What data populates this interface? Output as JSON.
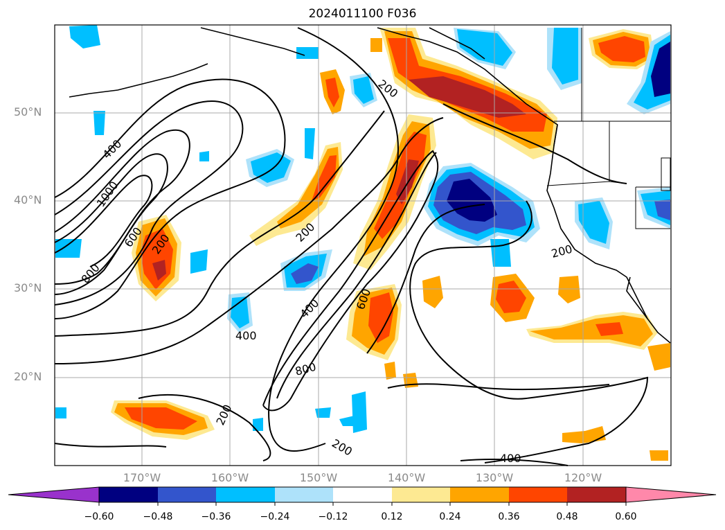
{
  "title": "2024011100 F036",
  "map": {
    "lat_labels": [
      "50°N",
      "40°N",
      "30°N",
      "20°N"
    ],
    "lon_labels": [
      "170°W",
      "160°W",
      "150°W",
      "140°W",
      "130°W",
      "120°W"
    ],
    "contour_labels": [
      "200",
      "400",
      "1000",
      "600",
      "800",
      "200",
      "200",
      "400",
      "600",
      "400",
      "800",
      "200",
      "200",
      "200",
      "400"
    ],
    "colors": {
      "c_neg_060": "#000080",
      "c_neg_048": "#3355cc",
      "c_neg_036": "#00bfff",
      "c_neg_024": "#aee2fa",
      "c_pos_012": "#fde992",
      "c_pos_024": "#ffa500",
      "c_pos_036": "#ff4500",
      "c_pos_048": "#b22222",
      "c_pos_060": "#ff88aa",
      "c_low_ext": "#9932cc"
    }
  },
  "colorbar": {
    "tick_labels": [
      "−0.60",
      "−0.48",
      "−0.36",
      "−0.24",
      "−0.12",
      "0.12",
      "0.24",
      "0.36",
      "0.48",
      "0.60"
    ]
  }
}
